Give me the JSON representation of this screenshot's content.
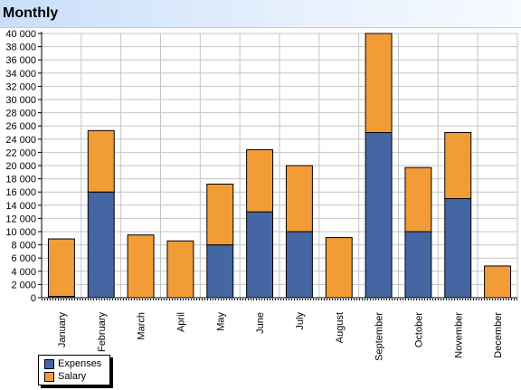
{
  "header": {
    "title": "Monthly"
  },
  "colors": {
    "expenses": "#4466a3",
    "salary": "#f29c38",
    "grid": "#c4c4c4"
  },
  "legend": {
    "placement": "bottom-left",
    "items": [
      "Expenses",
      "Salary"
    ]
  },
  "chart_data": {
    "type": "bar",
    "stacked": true,
    "title": "",
    "xlabel": "",
    "ylabel": "",
    "grid": true,
    "ylim": [
      0,
      40000
    ],
    "yticks": [
      "0",
      "2 000",
      "4 000",
      "6 000",
      "8 000",
      "10 000",
      "12 000",
      "14 000",
      "16 000",
      "18 000",
      "20 000",
      "22 000",
      "24 000",
      "26 000",
      "28 000",
      "30 000",
      "32 000",
      "34 000",
      "36 000",
      "38 000",
      "40 000"
    ],
    "categories": [
      "January",
      "February",
      "March",
      "April",
      "May",
      "June",
      "July",
      "August",
      "September",
      "October",
      "November",
      "December"
    ],
    "series": [
      {
        "name": "Expenses",
        "values": [
          200,
          16000,
          0,
          0,
          8000,
          13000,
          10000,
          0,
          25000,
          10000,
          15000,
          0
        ]
      },
      {
        "name": "Salary",
        "values": [
          8700,
          9300,
          9500,
          8600,
          9200,
          9400,
          10000,
          9100,
          15000,
          9700,
          10000,
          4800
        ]
      }
    ]
  }
}
